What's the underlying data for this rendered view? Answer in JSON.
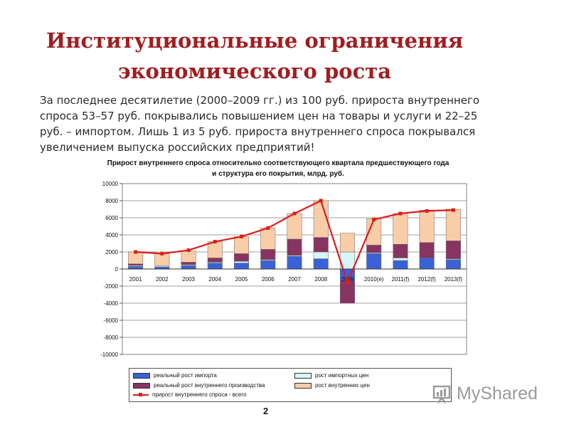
{
  "slide": {
    "title_line1": "Институциональные ограничения",
    "title_line2": "экономического роста",
    "body": "За последнее десятилетие (2000–2009 гг.) из 100 руб. прироста внутреннего спроса 53–57 руб. покрывались повышением цен на товары и услуги и 22–25 руб. – импортом. Лишь 1 из 5 руб. прироста внутреннего спроса покрывался увеличением выпуска российских предприятий!",
    "page_number": "2"
  },
  "watermark": {
    "text": "MyShared",
    "icon": "presentation-board-icon"
  },
  "chart_data": {
    "type": "bar",
    "stacked": true,
    "title": "Прирост внутреннего спроса относительно соответствующего квартала предшествующего года и структура его покрытия, млрд. руб.",
    "categories": [
      "2001",
      "2002",
      "2003",
      "2004",
      "2005",
      "2006",
      "2007",
      "2008",
      "2009",
      "2010(e)",
      "2011(f)",
      "2012(f)",
      "2013(f)"
    ],
    "ylim": [
      -10000,
      10000
    ],
    "yticks": [
      "10000",
      "8000",
      "6000",
      "4000",
      "2000",
      "0",
      "-2000",
      "-4000",
      "-6000",
      "-8000",
      "-10000"
    ],
    "grid": true,
    "legend_position": "bottom",
    "series": [
      {
        "name": "реальный рост импорта",
        "color": "#3a62d6",
        "values": [
          300,
          250,
          400,
          700,
          700,
          1000,
          1500,
          1200,
          -1400,
          1800,
          1000,
          1300,
          1100
        ]
      },
      {
        "name": "рост импортных цен",
        "color": "#d8f6f6",
        "values": [
          100,
          150,
          100,
          100,
          200,
          100,
          100,
          800,
          2000,
          100,
          300,
          0,
          100
        ]
      },
      {
        "name": "реальный рост внутреннего производства",
        "color": "#883460",
        "values": [
          200,
          0,
          300,
          500,
          900,
          1200,
          1900,
          1700,
          -2600,
          900,
          1600,
          1800,
          2100
        ]
      },
      {
        "name": "рост внутренних цен",
        "color": "#f9cda8",
        "values": [
          1400,
          1400,
          1300,
          1900,
          2000,
          2500,
          3000,
          4300,
          2200,
          3100,
          3600,
          3800,
          3700
        ]
      }
    ],
    "line": {
      "name": "прирост внутреннего спроса - всего",
      "color": "#dd1c1c",
      "values": [
        2000,
        1800,
        2200,
        3200,
        3800,
        4800,
        6500,
        8000,
        -1600,
        5800,
        6500,
        6800,
        6900
      ]
    }
  }
}
